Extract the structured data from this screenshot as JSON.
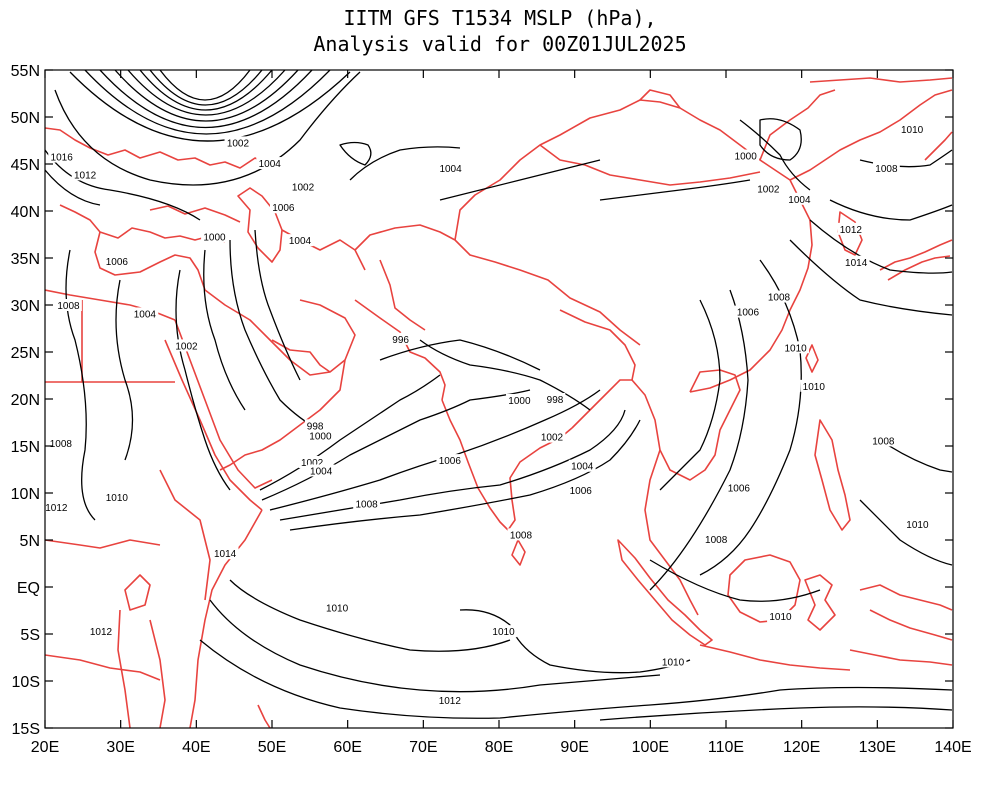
{
  "title": {
    "line1": "IITM GFS T1534 MSLP (hPa),",
    "line2": "Analysis valid for 00Z01JUL2025"
  },
  "axes": {
    "x_ticks": [
      "20E",
      "30E",
      "40E",
      "50E",
      "60E",
      "70E",
      "80E",
      "90E",
      "100E",
      "110E",
      "120E",
      "130E",
      "140E"
    ],
    "y_ticks": [
      "55N",
      "50N",
      "45N",
      "40N",
      "35N",
      "30N",
      "25N",
      "20N",
      "15N",
      "10N",
      "5N",
      "EQ",
      "5S",
      "10S",
      "15S"
    ]
  },
  "map_extent": {
    "lon_range": [
      20,
      140
    ],
    "lat_range": [
      -15,
      55
    ]
  },
  "colors": {
    "coastline": "#e8433f",
    "isobar": "#000000",
    "background": "#ffffff"
  },
  "contour_labels": [
    {
      "text": "1002",
      "lon": 45.5,
      "lat": 47.3
    },
    {
      "text": "1016",
      "lon": 22.2,
      "lat": 45.8
    },
    {
      "text": "1012",
      "lon": 25.3,
      "lat": 43.9
    },
    {
      "text": "1004",
      "lon": 49.7,
      "lat": 45.1
    },
    {
      "text": "1002",
      "lon": 54.1,
      "lat": 42.6
    },
    {
      "text": "1006",
      "lon": 51.5,
      "lat": 40.4
    },
    {
      "text": "1000",
      "lon": 42.4,
      "lat": 37.3
    },
    {
      "text": "1004",
      "lon": 53.7,
      "lat": 36.9
    },
    {
      "text": "1006",
      "lon": 29.5,
      "lat": 34.7
    },
    {
      "text": "1008",
      "lon": 23.1,
      "lat": 30.0
    },
    {
      "text": "1004",
      "lon": 33.2,
      "lat": 29.1
    },
    {
      "text": "1002",
      "lon": 38.7,
      "lat": 25.7
    },
    {
      "text": "996",
      "lon": 67.0,
      "lat": 26.4
    },
    {
      "text": "1004",
      "lon": 73.6,
      "lat": 44.6
    },
    {
      "text": "1000",
      "lon": 112.6,
      "lat": 45.9
    },
    {
      "text": "1002",
      "lon": 115.6,
      "lat": 42.4
    },
    {
      "text": "1004",
      "lon": 119.7,
      "lat": 41.3
    },
    {
      "text": "1010",
      "lon": 134.6,
      "lat": 48.7
    },
    {
      "text": "1008",
      "lon": 131.2,
      "lat": 44.6
    },
    {
      "text": "1012",
      "lon": 126.5,
      "lat": 38.1
    },
    {
      "text": "1014",
      "lon": 127.2,
      "lat": 34.6
    },
    {
      "text": "1008",
      "lon": 117.0,
      "lat": 30.9
    },
    {
      "text": "1006",
      "lon": 112.9,
      "lat": 29.3
    },
    {
      "text": "1010",
      "lon": 119.2,
      "lat": 25.5
    },
    {
      "text": "1010",
      "lon": 121.6,
      "lat": 21.4
    },
    {
      "text": "1000",
      "lon": 82.7,
      "lat": 19.9
    },
    {
      "text": "998",
      "lon": 87.4,
      "lat": 20.0
    },
    {
      "text": "998",
      "lon": 55.7,
      "lat": 17.2
    },
    {
      "text": "1000",
      "lon": 56.4,
      "lat": 16.1
    },
    {
      "text": "1002",
      "lon": 87.0,
      "lat": 16.0
    },
    {
      "text": "1006",
      "lon": 73.5,
      "lat": 13.5
    },
    {
      "text": "1002",
      "lon": 55.3,
      "lat": 13.3
    },
    {
      "text": "1004",
      "lon": 56.5,
      "lat": 12.4
    },
    {
      "text": "1004",
      "lon": 91.0,
      "lat": 12.9
    },
    {
      "text": "1006",
      "lon": 90.8,
      "lat": 10.3
    },
    {
      "text": "1006",
      "lon": 111.7,
      "lat": 10.6
    },
    {
      "text": "1008",
      "lon": 22.1,
      "lat": 15.3
    },
    {
      "text": "1010",
      "lon": 29.5,
      "lat": 9.6
    },
    {
      "text": "1012",
      "lon": 21.5,
      "lat": 8.5
    },
    {
      "text": "1008",
      "lon": 62.5,
      "lat": 8.9
    },
    {
      "text": "1008",
      "lon": 82.9,
      "lat": 5.6
    },
    {
      "text": "1008",
      "lon": 108.7,
      "lat": 5.1
    },
    {
      "text": "1008",
      "lon": 130.8,
      "lat": 15.6
    },
    {
      "text": "1010",
      "lon": 135.3,
      "lat": 6.7
    },
    {
      "text": "1014",
      "lon": 43.8,
      "lat": 3.6
    },
    {
      "text": "1010",
      "lon": 58.6,
      "lat": -2.2
    },
    {
      "text": "1012",
      "lon": 27.4,
      "lat": -4.7
    },
    {
      "text": "1010",
      "lon": 80.6,
      "lat": -4.7
    },
    {
      "text": "1010",
      "lon": 117.2,
      "lat": -3.1
    },
    {
      "text": "1010",
      "lon": 103.0,
      "lat": -7.9
    },
    {
      "text": "1012",
      "lon": 73.5,
      "lat": -12.0
    }
  ]
}
